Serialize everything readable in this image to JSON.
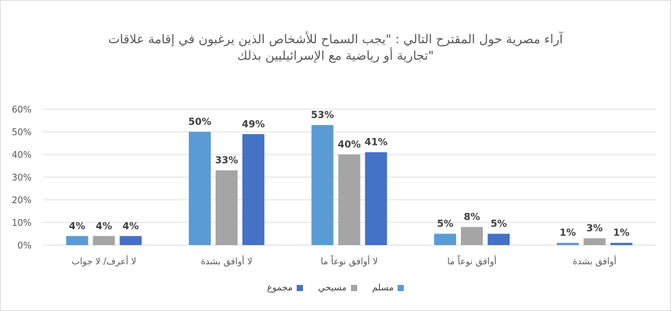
{
  "chart_data": {
    "type": "bar",
    "title_lines": [
      "آراء مصرية حول المقترح التالي : \"يجب السماح للأشخاص الذين يرغبون في إقامة علاقات",
      "تجارية أو رياضية مع الإسرائيليين بذلك\""
    ],
    "categories": [
      "لا أعرف/ لا جواب",
      "لا أوافق بشدة",
      "لا أوافق نوعاً ما",
      "أوافق نوعاً ما",
      "أوافق بشدة"
    ],
    "series": [
      {
        "name": "مسلم",
        "color": "#5b9bd5",
        "values": [
          4,
          50,
          53,
          5,
          1
        ]
      },
      {
        "name": "مسيحي",
        "color": "#a5a5a5",
        "values": [
          4,
          33,
          40,
          8,
          3
        ]
      },
      {
        "name": "مجموع",
        "color": "#4472c4",
        "values": [
          4,
          49,
          41,
          5,
          1
        ]
      }
    ],
    "yticks": [
      "0%",
      "10%",
      "20%",
      "30%",
      "40%",
      "50%",
      "60%"
    ],
    "ylim": [
      0,
      60
    ],
    "value_suffix": "%",
    "grid": true,
    "legend_position": "bottom"
  }
}
